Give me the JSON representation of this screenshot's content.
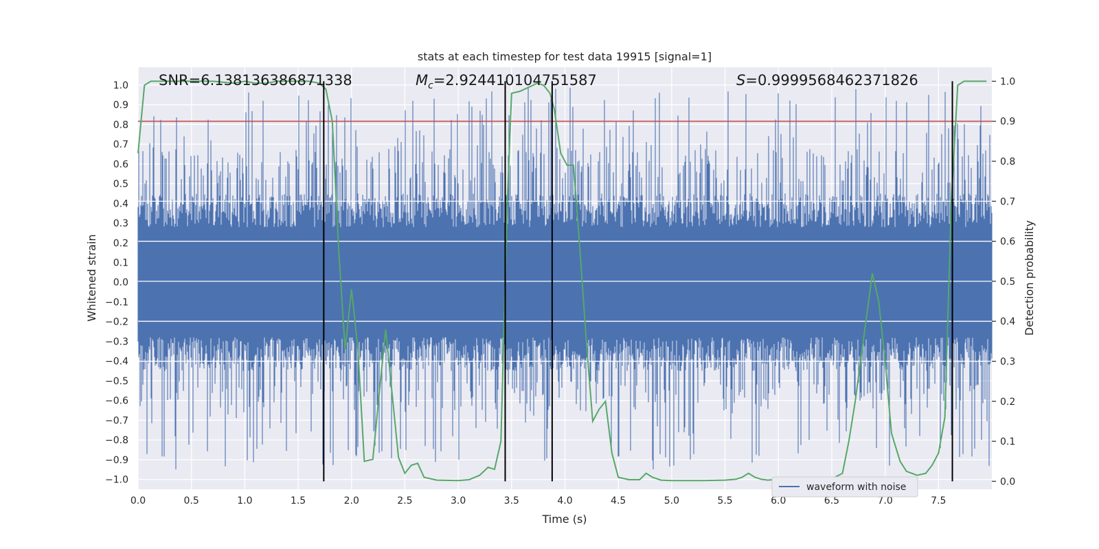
{
  "chart_data": {
    "type": "line",
    "title": "stats at each timestep for test data 19915 [signal=1]",
    "xlabel": "Time (s)",
    "ylabel": "Whitened strain",
    "y2label": "Detection probability",
    "xlim": [
      0.0,
      8.0
    ],
    "ylim": [
      -1.05,
      1.09
    ],
    "y2lim": [
      -0.02,
      1.035
    ],
    "x_ticks": [
      "0.0",
      "0.5",
      "1.0",
      "1.5",
      "2.0",
      "2.5",
      "3.0",
      "3.5",
      "4.0",
      "4.5",
      "5.0",
      "5.5",
      "6.0",
      "6.5",
      "7.0",
      "7.5"
    ],
    "x_tick_values": [
      0.0,
      0.5,
      1.0,
      1.5,
      2.0,
      2.5,
      3.0,
      3.5,
      4.0,
      4.5,
      5.0,
      5.5,
      6.0,
      6.5,
      7.0,
      7.5
    ],
    "y_ticks": [
      "1.0",
      "0.9",
      "0.8",
      "0.7",
      "0.6",
      "0.5",
      "0.4",
      "0.3",
      "0.2",
      "0.1",
      "0.0",
      "−0.1",
      "−0.2",
      "−0.3",
      "−0.4",
      "−0.5",
      "−0.6",
      "−0.7",
      "−0.8",
      "−0.9",
      "−1.0"
    ],
    "y_tick_values": [
      1.0,
      0.9,
      0.8,
      0.7,
      0.6,
      0.5,
      0.4,
      0.3,
      0.2,
      0.1,
      0.0,
      -0.1,
      -0.2,
      -0.3,
      -0.4,
      -0.5,
      -0.6,
      -0.7,
      -0.8,
      -0.9,
      -1.0
    ],
    "y2_ticks": [
      "1.0",
      "0.9",
      "0.8",
      "0.7",
      "0.6",
      "0.5",
      "0.4",
      "0.3",
      "0.2",
      "0.1",
      "0.0"
    ],
    "y2_tick_values": [
      1.0,
      0.9,
      0.8,
      0.7,
      0.6,
      0.5,
      0.4,
      0.3,
      0.2,
      0.1,
      0.0
    ],
    "grid": true,
    "legend": {
      "placement": "lower-right",
      "entries": [
        {
          "label": "waveform with noise",
          "color": "#4c72b0"
        }
      ]
    },
    "annotations": {
      "snr": "SNR=6.138136386871338",
      "mc_symbol": "M",
      "mc_sub": "c",
      "mc_value": "=2.924410104751587",
      "s_symbol": "S",
      "s_value": "=0.9999568462371826"
    },
    "threshold": {
      "axis": "y2",
      "value": 0.9,
      "color": "#c44e52"
    },
    "vertical_lines": {
      "x": [
        1.74,
        3.44,
        3.88,
        7.63
      ],
      "y2_range": [
        0.0,
        1.0
      ],
      "color": "#000000"
    },
    "waveform": {
      "name": "waveform with noise",
      "color": "#4c72b0",
      "envelope": 0.5,
      "peak": 1.0
    },
    "probability": {
      "color": "#55a868",
      "points": [
        [
          0.0,
          0.82
        ],
        [
          0.06,
          0.99
        ],
        [
          0.12,
          1.0
        ],
        [
          0.3,
          1.0
        ],
        [
          0.5,
          1.0
        ],
        [
          0.7,
          1.0
        ],
        [
          0.9,
          0.995
        ],
        [
          1.0,
          1.0
        ],
        [
          1.1,
          0.995
        ],
        [
          1.2,
          0.995
        ],
        [
          1.3,
          1.0
        ],
        [
          1.5,
          1.0
        ],
        [
          1.6,
          1.0
        ],
        [
          1.7,
          0.995
        ],
        [
          1.76,
          0.98
        ],
        [
          1.82,
          0.9
        ],
        [
          1.88,
          0.58
        ],
        [
          1.94,
          0.33
        ],
        [
          2.0,
          0.48
        ],
        [
          2.06,
          0.33
        ],
        [
          2.12,
          0.05
        ],
        [
          2.2,
          0.055
        ],
        [
          2.26,
          0.22
        ],
        [
          2.32,
          0.38
        ],
        [
          2.38,
          0.22
        ],
        [
          2.44,
          0.06
        ],
        [
          2.5,
          0.02
        ],
        [
          2.56,
          0.04
        ],
        [
          2.62,
          0.045
        ],
        [
          2.68,
          0.01
        ],
        [
          2.8,
          0.003
        ],
        [
          3.0,
          0.002
        ],
        [
          3.1,
          0.004
        ],
        [
          3.2,
          0.015
        ],
        [
          3.28,
          0.035
        ],
        [
          3.34,
          0.03
        ],
        [
          3.4,
          0.1
        ],
        [
          3.46,
          0.7
        ],
        [
          3.5,
          0.97
        ],
        [
          3.58,
          0.975
        ],
        [
          3.66,
          0.985
        ],
        [
          3.74,
          0.995
        ],
        [
          3.8,
          0.99
        ],
        [
          3.86,
          0.97
        ],
        [
          3.9,
          0.93
        ],
        [
          3.96,
          0.82
        ],
        [
          4.02,
          0.79
        ],
        [
          4.08,
          0.79
        ],
        [
          4.14,
          0.58
        ],
        [
          4.2,
          0.35
        ],
        [
          4.26,
          0.15
        ],
        [
          4.32,
          0.18
        ],
        [
          4.38,
          0.2
        ],
        [
          4.44,
          0.07
        ],
        [
          4.5,
          0.01
        ],
        [
          4.6,
          0.004
        ],
        [
          4.7,
          0.004
        ],
        [
          4.76,
          0.02
        ],
        [
          4.82,
          0.01
        ],
        [
          4.9,
          0.003
        ],
        [
          5.0,
          0.002
        ],
        [
          5.3,
          0.002
        ],
        [
          5.5,
          0.003
        ],
        [
          5.6,
          0.005
        ],
        [
          5.66,
          0.01
        ],
        [
          5.72,
          0.02
        ],
        [
          5.78,
          0.01
        ],
        [
          5.84,
          0.005
        ],
        [
          5.9,
          0.003
        ],
        [
          6.0,
          0.005
        ],
        [
          6.1,
          0.006
        ],
        [
          6.2,
          0.002
        ],
        [
          6.3,
          0.003
        ],
        [
          6.4,
          0.004
        ],
        [
          6.5,
          0.006
        ],
        [
          6.6,
          0.02
        ],
        [
          6.66,
          0.1
        ],
        [
          6.72,
          0.2
        ],
        [
          6.78,
          0.32
        ],
        [
          6.84,
          0.44
        ],
        [
          6.88,
          0.52
        ],
        [
          6.94,
          0.45
        ],
        [
          7.0,
          0.3
        ],
        [
          7.06,
          0.12
        ],
        [
          7.14,
          0.05
        ],
        [
          7.2,
          0.025
        ],
        [
          7.3,
          0.015
        ],
        [
          7.38,
          0.02
        ],
        [
          7.44,
          0.04
        ],
        [
          7.5,
          0.07
        ],
        [
          7.56,
          0.16
        ],
        [
          7.62,
          0.7
        ],
        [
          7.68,
          0.99
        ],
        [
          7.74,
          1.0
        ],
        [
          7.8,
          1.0
        ],
        [
          7.95,
          1.0
        ]
      ]
    }
  }
}
